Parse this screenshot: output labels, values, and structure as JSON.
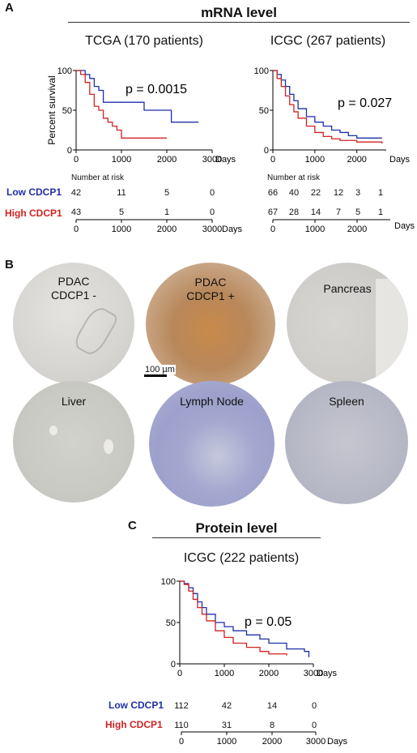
{
  "panelA": {
    "letter": "A",
    "section_title": "mRNA level",
    "days_label": "Days",
    "tcga": {
      "title": "TCGA (170 patients)",
      "pvalue": "p = 0.0015",
      "ylabel": "Percent survival",
      "yticks": [
        "100",
        "50",
        "0"
      ],
      "xticks": [
        "0",
        "1000",
        "2000",
        "3000"
      ],
      "risk": {
        "header": "Number at risk",
        "low": [
          "42",
          "11",
          "5",
          "0"
        ],
        "high": [
          "43",
          "5",
          "1",
          "0"
        ]
      }
    },
    "icgc": {
      "title": "ICGC (267 patients)",
      "pvalue": "p = 0.027",
      "yticks": [
        "100",
        "50",
        "0"
      ],
      "xticks": [
        "0",
        "1000",
        "2000"
      ],
      "risk": {
        "header": "Number at risk",
        "low": [
          "66",
          "40",
          "22",
          "12",
          "3",
          "1"
        ],
        "high": [
          "67",
          "28",
          "14",
          "7",
          "5",
          "1"
        ]
      }
    },
    "low_label": "Low CDCP1",
    "high_label": "High CDCP1"
  },
  "panelB": {
    "letter": "B",
    "scale_bar": "100 µm",
    "tissues": [
      {
        "label": "PDAC CDCP1 -",
        "lines": [
          "PDAC",
          "CDCP1 -"
        ]
      },
      {
        "label": "PDAC CDCP1 +",
        "lines": [
          "PDAC",
          "CDCP1 +"
        ]
      },
      {
        "label": "Pancreas",
        "lines": [
          "Pancreas"
        ]
      },
      {
        "label": "Liver",
        "lines": [
          "Liver"
        ]
      },
      {
        "label": "Lymph Node",
        "lines": [
          "Lymph Node"
        ]
      },
      {
        "label": "Spleen",
        "lines": [
          "Spleen"
        ]
      }
    ]
  },
  "panelC": {
    "letter": "C",
    "section_title": "Protein level",
    "title": "ICGC (222 patients)",
    "pvalue": "p = 0.05",
    "yticks": [
      "100",
      "50",
      "0"
    ],
    "xticks": [
      "0",
      "1000",
      "2000",
      "3000"
    ],
    "days_label": "Days",
    "low_label": "Low CDCP1",
    "high_label": "High CDCP1",
    "risk": {
      "low": [
        "112",
        "42",
        "14",
        "0"
      ],
      "high": [
        "110",
        "31",
        "8",
        "0"
      ]
    }
  },
  "colors": {
    "low": "#1f2fa8",
    "high": "#d02222"
  },
  "chart_data": [
    {
      "type": "line",
      "title": "TCGA (170 patients)",
      "ylabel": "Percent survival",
      "xlabel": "Days",
      "xlim": [
        0,
        3000
      ],
      "ylim": [
        0,
        100
      ],
      "series": [
        {
          "name": "Low CDCP1",
          "x": [
            0,
            150,
            200,
            300,
            400,
            500,
            600,
            800,
            1000,
            1500,
            2100,
            2700
          ],
          "y": [
            100,
            100,
            95,
            90,
            80,
            75,
            60,
            60,
            60,
            50,
            35,
            35
          ]
        },
        {
          "name": "High CDCP1",
          "x": [
            0,
            100,
            200,
            300,
            400,
            500,
            600,
            700,
            800,
            900,
            1000,
            1200,
            2000
          ],
          "y": [
            100,
            95,
            85,
            70,
            55,
            50,
            40,
            35,
            30,
            25,
            15,
            15,
            15
          ]
        }
      ]
    },
    {
      "type": "line",
      "title": "ICGC (267 patients)",
      "xlabel": "Days",
      "xlim": [
        0,
        2700
      ],
      "ylim": [
        0,
        100
      ],
      "series": [
        {
          "name": "Low CDCP1",
          "x": [
            0,
            100,
            200,
            300,
            400,
            500,
            600,
            800,
            1000,
            1200,
            1400,
            1600,
            1800,
            2000,
            2600
          ],
          "y": [
            100,
            95,
            88,
            80,
            70,
            62,
            52,
            42,
            35,
            30,
            25,
            22,
            18,
            15,
            15
          ]
        },
        {
          "name": "High CDCP1",
          "x": [
            0,
            100,
            200,
            300,
            400,
            500,
            600,
            800,
            1000,
            1200,
            1400,
            1600,
            2000,
            2600
          ],
          "y": [
            100,
            90,
            80,
            68,
            57,
            48,
            40,
            30,
            22,
            17,
            14,
            12,
            10,
            8
          ]
        }
      ]
    },
    {
      "type": "line",
      "title": "ICGC (222 patients)",
      "xlabel": "Days",
      "xlim": [
        0,
        3000
      ],
      "ylim": [
        0,
        100
      ],
      "series": [
        {
          "name": "Low CDCP1",
          "x": [
            0,
            100,
            200,
            300,
            400,
            500,
            600,
            800,
            1000,
            1200,
            1500,
            1800,
            2000,
            2400,
            2800,
            2900
          ],
          "y": [
            100,
            97,
            92,
            85,
            75,
            68,
            60,
            50,
            45,
            40,
            35,
            30,
            25,
            18,
            15,
            8
          ]
        },
        {
          "name": "High CDCP1",
          "x": [
            0,
            100,
            200,
            300,
            400,
            500,
            600,
            800,
            1000,
            1200,
            1500,
            1800,
            2000,
            2400
          ],
          "y": [
            100,
            96,
            88,
            78,
            68,
            60,
            52,
            40,
            32,
            25,
            20,
            15,
            12,
            10
          ]
        }
      ]
    }
  ]
}
